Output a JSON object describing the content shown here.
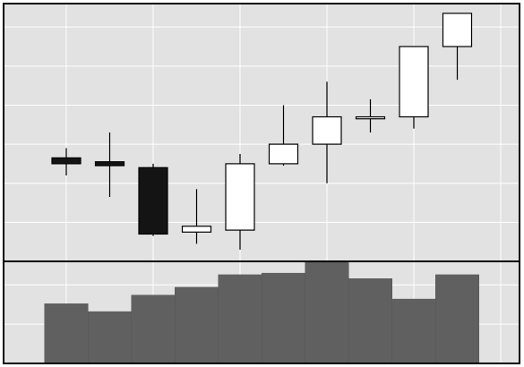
{
  "colors": {
    "panel_background": "#e2e2e2",
    "gridline": "#ffffff",
    "frame": "#000000",
    "rising_body": "#ffffff",
    "falling_body": "#141414",
    "volume_bar": "#606060"
  },
  "chart_data": {
    "type": "candlestick",
    "title": "",
    "xlabel": "",
    "ylabel": "",
    "grid": true,
    "price_ylim": [
      0,
      6.6
    ],
    "volume_ylim": [
      0,
      1.3
    ],
    "candles": [
      {
        "open": 2.65,
        "high": 2.9,
        "low": 2.2,
        "close": 2.5
      },
      {
        "open": 2.55,
        "high": 3.3,
        "low": 1.65,
        "close": 2.45
      },
      {
        "open": 2.4,
        "high": 2.5,
        "low": 0.65,
        "close": 0.7
      },
      {
        "open": 0.75,
        "high": 1.85,
        "low": 0.45,
        "close": 0.9
      },
      {
        "open": 0.8,
        "high": 2.75,
        "low": 0.3,
        "close": 2.5
      },
      {
        "open": 2.5,
        "high": 4.0,
        "low": 2.45,
        "close": 3.0
      },
      {
        "open": 3.0,
        "high": 4.6,
        "low": 2.0,
        "close": 3.7
      },
      {
        "open": 3.65,
        "high": 4.15,
        "low": 3.3,
        "close": 3.7
      },
      {
        "open": 3.7,
        "high": 5.5,
        "low": 3.4,
        "close": 5.5
      },
      {
        "open": 5.5,
        "high": 6.35,
        "low": 4.65,
        "close": 6.35
      }
    ],
    "volume": [
      0.76,
      0.66,
      0.87,
      0.97,
      1.13,
      1.15,
      1.29,
      1.08,
      0.82,
      1.13
    ]
  }
}
